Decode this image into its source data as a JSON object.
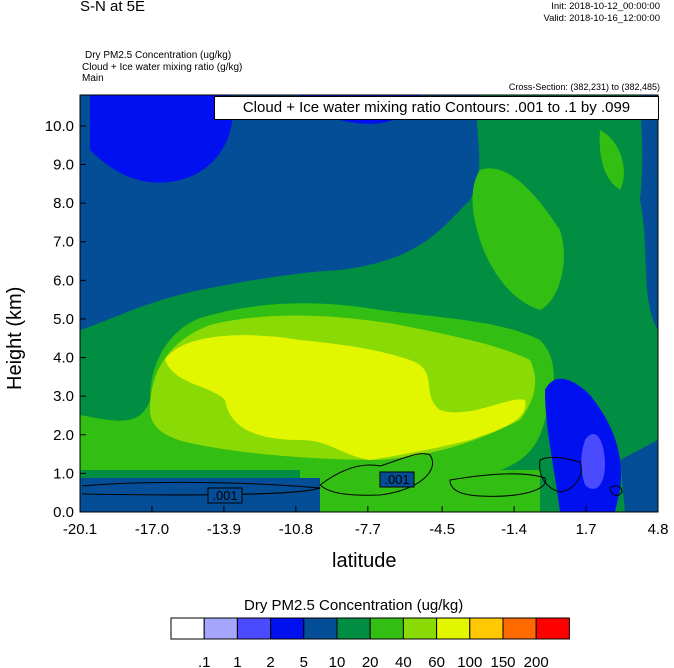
{
  "header": {
    "title": "S-N at 5E",
    "init": "Init: 2018-10-12_00:00:00",
    "valid": "Valid: 2018-10-16_12:00:00",
    "field1": "Dry PM2.5 Concentration   (ug/kg)",
    "field2": "Cloud + Ice water mixing ratio   (g/kg)",
    "domain": "Main",
    "cross_section": "Cross-Section: (382,231) to (382,485)"
  },
  "chart_data": {
    "type": "heatmap",
    "subtype": "filled contour with line contours",
    "contour_title": "Cloud + Ice water mixing ratio Contours: .001 to .1 by .099",
    "contour_labels": [
      ".001",
      ".001"
    ],
    "xlabel": "latitude",
    "ylabel": "Height (km)",
    "xlim": [
      -20.1,
      4.8
    ],
    "ylim": [
      0,
      10.8
    ],
    "xticks": [
      "-20.1",
      "-17.0",
      "-13.9",
      "-10.8",
      "-7.7",
      "-4.5",
      "-1.4",
      "1.7",
      "4.8"
    ],
    "yticks": [
      "0.0",
      "1.0",
      "2.0",
      "3.0",
      "4.0",
      "5.0",
      "6.0",
      "7.0",
      "8.0",
      "9.0",
      "10.0"
    ],
    "colorbar": {
      "title": "Dry PM2.5 Concentration  (ug/kg)",
      "levels": [
        ".1",
        "1",
        "2",
        "5",
        "10",
        "20",
        "40",
        "60",
        "100",
        "150",
        "200"
      ],
      "colors": [
        "#ffffff",
        "#a6a6ff",
        "#4a4aff",
        "#0010ee",
        "#034e96",
        "#028e42",
        "#32be12",
        "#8ada06",
        "#e2f600",
        "#ffc800",
        "#ff6a00",
        "#ff0000"
      ],
      "placement": "bottom"
    }
  }
}
